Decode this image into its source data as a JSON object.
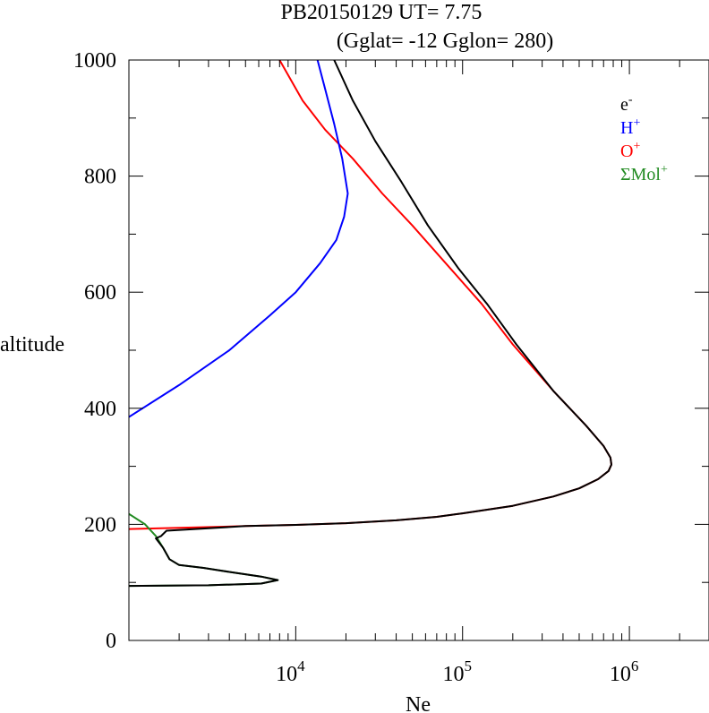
{
  "chart_data": {
    "type": "line",
    "title": "PB20150129   UT=  7.75",
    "subtitle": "(Gglat= -12   Gglon=  280)",
    "xlabel": "Ne",
    "ylabel": "altitude",
    "xscale": "log",
    "xlim": [
      1000,
      3000000
    ],
    "ylim": [
      0,
      1000
    ],
    "xticks": [
      {
        "value": 10000,
        "base": "10",
        "exp": "4"
      },
      {
        "value": 100000,
        "base": "10",
        "exp": "5"
      },
      {
        "value": 1000000,
        "base": "10",
        "exp": "6"
      }
    ],
    "yticks": [
      {
        "value": 0,
        "label": "0"
      },
      {
        "value": 200,
        "label": "200"
      },
      {
        "value": 400,
        "label": "400"
      },
      {
        "value": 600,
        "label": "600"
      },
      {
        "value": 800,
        "label": "800"
      },
      {
        "value": 1000,
        "label": "1000"
      }
    ],
    "legend_position": "top-right",
    "series": [
      {
        "name": "O+",
        "base": "O",
        "sup": "+",
        "color": "#ff0000",
        "points": [
          [
            1000,
            192
          ],
          [
            2000,
            194
          ],
          [
            5000,
            197
          ],
          [
            10000,
            199
          ],
          [
            20000,
            202
          ],
          [
            40000,
            207
          ],
          [
            70000,
            213
          ],
          [
            100000,
            219
          ],
          [
            200000,
            232
          ],
          [
            350000,
            248
          ],
          [
            500000,
            262
          ],
          [
            650000,
            278
          ],
          [
            750000,
            292
          ],
          [
            780000,
            303
          ],
          [
            770000,
            315
          ],
          [
            700000,
            335
          ],
          [
            550000,
            370
          ],
          [
            350000,
            430
          ],
          [
            200000,
            510
          ],
          [
            130000,
            580
          ],
          [
            85000,
            640
          ],
          [
            50000,
            715
          ],
          [
            33000,
            770
          ],
          [
            22000,
            830
          ],
          [
            15000,
            880
          ],
          [
            11000,
            930
          ],
          [
            8000,
            1000
          ]
        ]
      },
      {
        "name": "H+",
        "base": "H",
        "sup": "+",
        "color": "#0000ff",
        "points": [
          [
            1000,
            385
          ],
          [
            2000,
            440
          ],
          [
            4000,
            500
          ],
          [
            7000,
            560
          ],
          [
            10000,
            600
          ],
          [
            14000,
            650
          ],
          [
            17500,
            690
          ],
          [
            19500,
            730
          ],
          [
            20500,
            770
          ],
          [
            19000,
            830
          ],
          [
            17000,
            890
          ],
          [
            15000,
            950
          ],
          [
            13500,
            1000
          ]
        ]
      },
      {
        "name": "ΣMol+",
        "base": "ΣMol",
        "sup": "+",
        "color": "#228b22",
        "points": [
          [
            1000,
            218
          ],
          [
            1250,
            200
          ],
          [
            1450,
            180
          ],
          [
            1600,
            160
          ],
          [
            1750,
            140
          ],
          [
            2000,
            130
          ],
          [
            2800,
            125
          ],
          [
            4000,
            118
          ],
          [
            6200,
            110
          ],
          [
            7800,
            104
          ],
          [
            6200,
            98
          ],
          [
            3000,
            95
          ],
          [
            1000,
            94
          ]
        ]
      },
      {
        "name": "e-",
        "base": "e",
        "sup": "-",
        "color": "#000000",
        "points": [
          [
            1000,
            94
          ],
          [
            3000,
            95
          ],
          [
            6200,
            98
          ],
          [
            7800,
            104
          ],
          [
            6200,
            110
          ],
          [
            4000,
            118
          ],
          [
            2800,
            125
          ],
          [
            2000,
            130
          ],
          [
            1750,
            140
          ],
          [
            1600,
            160
          ],
          [
            1450,
            176
          ],
          [
            1560,
            180
          ],
          [
            1680,
            189
          ],
          [
            5000,
            197
          ],
          [
            10000,
            199
          ],
          [
            20000,
            202
          ],
          [
            40000,
            207
          ],
          [
            70000,
            213
          ],
          [
            100000,
            219
          ],
          [
            200000,
            232
          ],
          [
            350000,
            248
          ],
          [
            500000,
            262
          ],
          [
            650000,
            278
          ],
          [
            750000,
            292
          ],
          [
            780000,
            303
          ],
          [
            770000,
            315
          ],
          [
            700000,
            335
          ],
          [
            550000,
            370
          ],
          [
            350000,
            430
          ],
          [
            210000,
            510
          ],
          [
            140000,
            580
          ],
          [
            95000,
            640
          ],
          [
            62000,
            715
          ],
          [
            43000,
            790
          ],
          [
            30000,
            860
          ],
          [
            22000,
            930
          ],
          [
            17000,
            1000
          ]
        ]
      }
    ]
  }
}
